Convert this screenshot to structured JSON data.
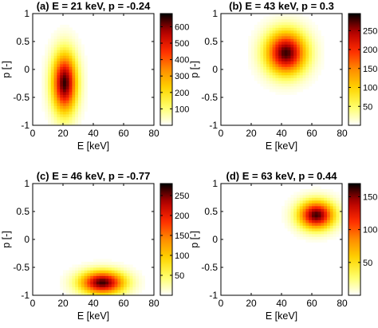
{
  "colormap": [
    "#ffffff",
    "#ffff66",
    "#ffd400",
    "#ff8c00",
    "#ff2a00",
    "#b40000",
    "#000000"
  ],
  "chart_data": [
    {
      "type": "heatmap",
      "title": "(a) E = 21 keV, p = -0.24",
      "xlabel": "E [keV]",
      "ylabel": "p [-]",
      "xlim": [
        0,
        80
      ],
      "ylim": [
        -1,
        1
      ],
      "xticks": [
        "0",
        "20",
        "40",
        "60",
        "80"
      ],
      "yticks": [
        "-1",
        "-0.5",
        "0",
        "0.5",
        "1"
      ],
      "peak": {
        "E": 21,
        "p": -0.24,
        "value": 650
      },
      "spread": {
        "E": 5.5,
        "p": 0.36
      },
      "colorbar": {
        "min": 0,
        "max": 680,
        "ticks": [
          100,
          200,
          300,
          400,
          500,
          600
        ],
        "labels": [
          "100",
          "200",
          "300",
          "400",
          "500",
          "600"
        ]
      }
    },
    {
      "type": "heatmap",
      "title": "(b) E = 43 keV, p = 0.3",
      "xlabel": "E [keV]",
      "ylabel": "p [-]",
      "xlim": [
        0,
        80
      ],
      "ylim": [
        -1,
        1
      ],
      "xticks": [
        "0",
        "20",
        "40",
        "60",
        "80"
      ],
      "yticks": [
        "-1",
        "-0.5",
        "0",
        "0.5",
        "1"
      ],
      "peak": {
        "E": 43,
        "p": 0.3,
        "value": 280
      },
      "spread": {
        "E": 9,
        "p": 0.26
      },
      "colorbar": {
        "min": 0,
        "max": 295,
        "ticks": [
          50,
          100,
          150,
          200,
          250
        ],
        "labels": [
          "50",
          "100",
          "150",
          "200",
          "250"
        ]
      }
    },
    {
      "type": "heatmap",
      "title": "(c) E = 46 keV, p = -0.77",
      "xlabel": "E [keV]",
      "ylabel": "p [-]",
      "xlim": [
        0,
        80
      ],
      "ylim": [
        -1,
        1
      ],
      "xticks": [
        "0",
        "20",
        "40",
        "60",
        "80"
      ],
      "yticks": [
        "-1",
        "-0.5",
        "0",
        "0.5",
        "1"
      ],
      "peak": {
        "E": 46,
        "p": -0.77,
        "value": 265
      },
      "spread": {
        "E": 10,
        "p": 0.14
      },
      "colorbar": {
        "min": 0,
        "max": 280,
        "ticks": [
          50,
          100,
          150,
          200,
          250
        ],
        "labels": [
          "50",
          "100",
          "150",
          "200",
          "250"
        ]
      }
    },
    {
      "type": "heatmap",
      "title": "(d) E = 63 keV, p = 0.44",
      "xlabel": "E [keV]",
      "ylabel": "p [-]",
      "xlim": [
        0,
        80
      ],
      "ylim": [
        -1,
        1
      ],
      "xticks": [
        "0",
        "20",
        "40",
        "60",
        "80"
      ],
      "yticks": [
        "-1",
        "-0.5",
        "0",
        "0.5",
        "1"
      ],
      "peak": {
        "E": 63,
        "p": 0.44,
        "value": 160
      },
      "spread": {
        "E": 8,
        "p": 0.17
      },
      "colorbar": {
        "min": 0,
        "max": 170,
        "ticks": [
          50,
          100,
          150
        ],
        "labels": [
          "50",
          "100",
          "150"
        ]
      }
    }
  ]
}
